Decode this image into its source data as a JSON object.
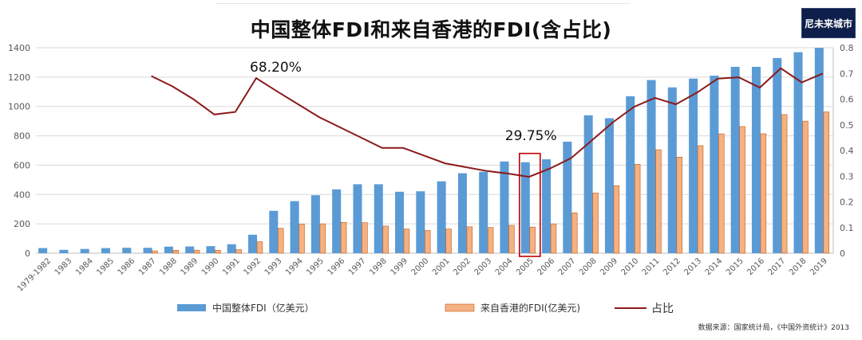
{
  "title": "中国整体FDI和来自香港的FDI(含占比)",
  "logo_text": "尼未来城市",
  "source": "数据来源：国家统计局，《中国外资统计》2013",
  "colors": {
    "total_bar": "#5b9bd5",
    "hk_bar": "#f4b183",
    "ratio_line": "#8b1a1a",
    "highlight_box": "#c00000"
  },
  "chart_data": {
    "type": "bar",
    "title": "中国整体FDI和来自香港的FDI(含占比)",
    "categories": [
      "1979-1982",
      "1983",
      "1984",
      "1985",
      "1986",
      "1987",
      "1988",
      "1989",
      "1990",
      "1991",
      "1992",
      "1993",
      "1994",
      "1995",
      "1996",
      "1997",
      "1998",
      "1999",
      "2000",
      "2001",
      "2002",
      "2003",
      "2004",
      "2005",
      "2006",
      "2007",
      "2008",
      "2009",
      "2010",
      "2011",
      "2012",
      "2013",
      "2014",
      "2015",
      "2016",
      "2017",
      "2018",
      "2019"
    ],
    "series": [
      {
        "name": "中国整体FDI（亿美元）",
        "type": "bar",
        "axis": "left",
        "values": [
          35,
          23,
          29,
          35,
          37,
          37,
          45,
          46,
          48,
          61,
          126,
          289,
          355,
          395,
          435,
          470,
          470,
          419,
          422,
          490,
          545,
          555,
          625,
          620,
          640,
          760,
          940,
          920,
          1070,
          1180,
          1130,
          1190,
          1210,
          1270,
          1270,
          1330,
          1370,
          1400
        ]
      },
      {
        "name": "来自香港的FDI(亿美元)",
        "type": "bar",
        "axis": "left",
        "values": [
          null,
          null,
          null,
          null,
          null,
          16,
          20,
          21,
          20,
          24,
          78,
          170,
          198,
          200,
          210,
          208,
          185,
          165,
          155,
          165,
          180,
          175,
          190,
          178,
          200,
          275,
          410,
          460,
          606,
          705,
          655,
          733,
          813,
          863,
          814,
          945,
          900,
          963
        ]
      },
      {
        "name": "占比",
        "type": "line",
        "axis": "right",
        "values": [
          null,
          null,
          null,
          null,
          null,
          0.69,
          0.65,
          0.6,
          0.54,
          0.55,
          0.682,
          0.63,
          0.58,
          0.53,
          0.49,
          0.45,
          0.41,
          0.41,
          0.38,
          0.35,
          0.335,
          0.32,
          0.31,
          0.2975,
          0.33,
          0.37,
          0.44,
          0.51,
          0.57,
          0.605,
          0.58,
          0.625,
          0.68,
          0.685,
          0.645,
          0.72,
          0.665,
          0.7
        ]
      }
    ],
    "ylim": [
      0,
      1400
    ],
    "yticks": [
      0,
      200,
      400,
      600,
      800,
      1000,
      1200,
      1400
    ],
    "y2lim": [
      0,
      0.8
    ],
    "y2ticks": [
      "0",
      "0.1",
      "0.2",
      "0.3",
      "0.4",
      "0.5",
      "0.6",
      "0.7",
      "0.8"
    ],
    "annotations": [
      {
        "text": "68.20%",
        "category": "1992",
        "value": 0.682
      },
      {
        "text": "29.75%",
        "category": "2005",
        "value": 0.2975
      }
    ],
    "highlight_category": "2005",
    "legend": {
      "position": "bottom",
      "labels": [
        "中国整体FDI（亿美元）",
        "来自香港的FDI(亿美元)",
        "占比"
      ]
    }
  }
}
